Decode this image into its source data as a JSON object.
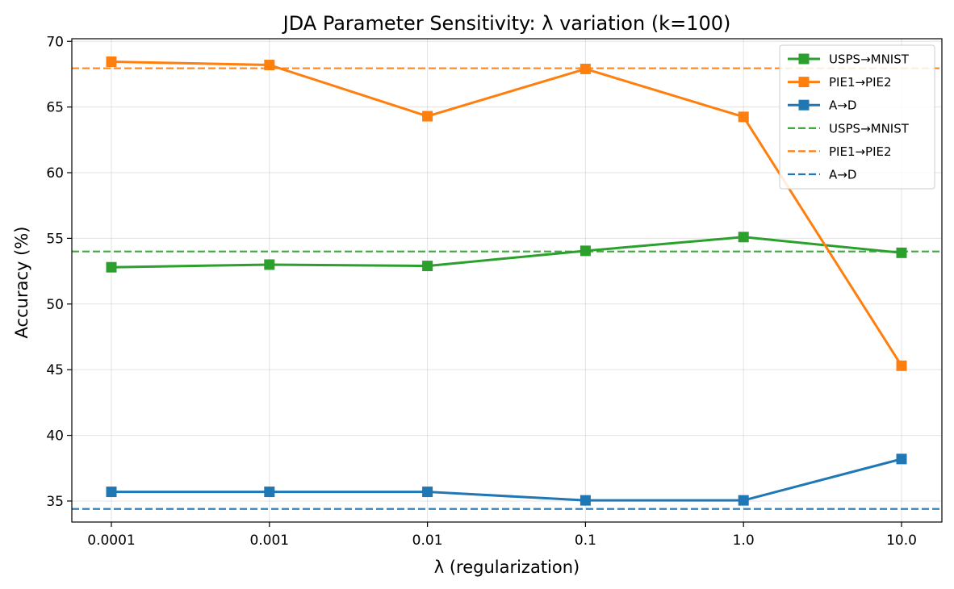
{
  "chart_data": {
    "type": "line",
    "title": "JDA Parameter Sensitivity: λ variation (k=100)",
    "xlabel": "λ (regularization)",
    "ylabel": "Accuracy (%)",
    "categories": [
      "0.0001",
      "0.001",
      "0.01",
      "0.1",
      "1.0",
      "10.0"
    ],
    "ylim": [
      33.4,
      70.2
    ],
    "yticks": [
      35,
      40,
      45,
      50,
      55,
      60,
      65,
      70
    ],
    "grid": true,
    "legend_position": "top-right",
    "series": [
      {
        "name": "USPS→MNIST",
        "color": "#2ca02c",
        "marker": "square",
        "values": [
          52.8,
          53.0,
          52.9,
          54.05,
          55.1,
          53.9
        ]
      },
      {
        "name": "PIE1→PIE2",
        "color": "#ff7f0e",
        "marker": "square",
        "values": [
          68.45,
          68.2,
          64.3,
          67.9,
          64.25,
          45.3
        ]
      },
      {
        "name": "A→D",
        "color": "#1f77b4",
        "marker": "square",
        "values": [
          35.7,
          35.7,
          35.7,
          35.05,
          35.05,
          38.2
        ]
      }
    ],
    "baselines": [
      {
        "name": "USPS→MNIST",
        "color": "#2ca02c",
        "value": 54.0,
        "style": "dashed"
      },
      {
        "name": "PIE1→PIE2",
        "color": "#ff7f0e",
        "value": 67.95,
        "style": "dashed"
      },
      {
        "name": "A→D",
        "color": "#1f77b4",
        "value": 34.4,
        "style": "dashed"
      }
    ]
  }
}
